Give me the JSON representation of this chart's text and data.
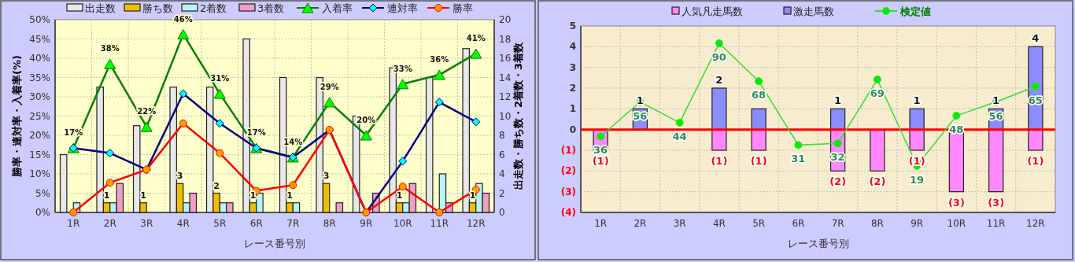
{
  "chart_data": [
    {
      "type": "bar",
      "xlabel": "レース番号別",
      "ylabel": "勝率・連対率・入着率(%)",
      "y2label": "出走数・勝ち数・2着数・3着数",
      "categories": [
        "1R",
        "2R",
        "3R",
        "4R",
        "5R",
        "6R",
        "7R",
        "8R",
        "9R",
        "10R",
        "11R",
        "12R"
      ],
      "ylim": [
        0,
        50
      ],
      "yticks": [
        {
          "value": 0,
          "label": "0%"
        },
        {
          "value": 5,
          "label": "5%"
        },
        {
          "value": 10,
          "label": "10%"
        },
        {
          "value": 15,
          "label": "15%"
        },
        {
          "value": 20,
          "label": "20%"
        },
        {
          "value": 25,
          "label": "25%"
        },
        {
          "value": 30,
          "label": "30%"
        },
        {
          "value": 35,
          "label": "35%"
        },
        {
          "value": 40,
          "label": "40%"
        },
        {
          "value": 45,
          "label": "45%"
        },
        {
          "value": 50,
          "label": "50%"
        }
      ],
      "y2lim": [
        0,
        20
      ],
      "y2ticks": [
        0,
        2,
        4,
        6,
        8,
        10,
        12,
        14,
        16,
        18,
        20
      ],
      "grid": true,
      "legend": "top",
      "series": [
        {
          "name": "出走数",
          "color": "#e8e8e8",
          "axis": "y2",
          "values": [
            6,
            13,
            9,
            13,
            13,
            18,
            14,
            14,
            10,
            15,
            14,
            17
          ]
        },
        {
          "name": "勝ち数",
          "color": "#f0c000",
          "axis": "y2",
          "values": [
            0,
            1,
            1,
            3,
            2,
            1,
            1,
            3,
            0,
            1,
            0,
            1
          ],
          "value_labels": [
            null,
            "1",
            "1",
            "3",
            "2",
            "1",
            "1",
            "3",
            null,
            "1",
            null,
            "1"
          ]
        },
        {
          "name": "2着数",
          "color": "#b8f4f4",
          "axis": "y2",
          "values": [
            1,
            1,
            0,
            1,
            1,
            2,
            1,
            0,
            0,
            1,
            4,
            3
          ]
        },
        {
          "name": "3着数",
          "color": "#f0a0c8",
          "axis": "y2",
          "values": [
            0,
            3,
            0,
            2,
            1,
            0,
            0,
            1,
            2,
            3,
            1,
            2
          ]
        },
        {
          "name": "入着率",
          "type": "line",
          "color": "#008000",
          "marker": "triangle",
          "values": [
            16.7,
            38.5,
            22.2,
            46.2,
            30.8,
            16.7,
            14.3,
            28.6,
            20,
            33.3,
            35.7,
            41.2
          ],
          "value_labels": [
            "17%",
            "38%",
            "22%",
            "46%",
            "31%",
            "17%",
            "14%",
            "29%",
            "20%",
            "33%",
            "36%",
            "41%"
          ]
        },
        {
          "name": "連対率",
          "type": "line",
          "color": "#000080",
          "marker": "diamond",
          "values": [
            16.7,
            15.4,
            11.1,
            30.8,
            23.1,
            16.7,
            14.3,
            21.4,
            0,
            13.3,
            28.6,
            23.5
          ]
        },
        {
          "name": "勝率",
          "type": "line",
          "color": "#ff0000",
          "marker": "circle",
          "values": [
            0,
            7.7,
            11.1,
            23.1,
            15.4,
            5.6,
            7.1,
            21.4,
            0,
            6.7,
            0,
            5.9
          ]
        }
      ]
    },
    {
      "type": "bar",
      "xlabel": "レース番号別",
      "stacked": true,
      "categories": [
        "1R",
        "2R",
        "3R",
        "4R",
        "5R",
        "6R",
        "7R",
        "8R",
        "9R",
        "10R",
        "11R",
        "12R"
      ],
      "ylim": [
        -4,
        5
      ],
      "yticks": [
        {
          "value": 5,
          "label": "5"
        },
        {
          "value": 4,
          "label": "4"
        },
        {
          "value": 3,
          "label": "3"
        },
        {
          "value": 2,
          "label": "2"
        },
        {
          "value": 1,
          "label": "1"
        },
        {
          "value": 0,
          "label": "0"
        },
        {
          "value": -1,
          "label": "(1)"
        },
        {
          "value": -2,
          "label": "(2)"
        },
        {
          "value": -3,
          "label": "(3)"
        },
        {
          "value": -4,
          "label": "(4)"
        }
      ],
      "y2lim": [
        -8,
        100
      ],
      "grid": true,
      "legend": "top",
      "ref_lines": [
        {
          "axis": "y",
          "value": 0,
          "color": "#ff0000"
        }
      ],
      "series": [
        {
          "name": "人気凡走馬数",
          "color": "#ff88ff",
          "values": [
            -1,
            0,
            0,
            -1,
            -1,
            0,
            -2,
            -2,
            -1,
            -3,
            -3,
            -1
          ],
          "value_labels": [
            "(1)",
            null,
            null,
            "(1)",
            "(1)",
            null,
            "(2)",
            "(2)",
            "(1)",
            "(3)",
            "(3)",
            "(1)"
          ]
        },
        {
          "name": "激走馬数",
          "color": "#8c8cff",
          "values": [
            0,
            1,
            0,
            2,
            1,
            0,
            1,
            0,
            1,
            0,
            1,
            4
          ],
          "value_labels": [
            null,
            "1",
            null,
            "2",
            null,
            null,
            "1",
            null,
            "1",
            null,
            "1",
            "4"
          ]
        },
        {
          "name": "検定値",
          "type": "line",
          "axis": "y2",
          "color": "#33dd33",
          "marker": "circle",
          "values": [
            36,
            56,
            44,
            90,
            68,
            31,
            32,
            69,
            19,
            48,
            56,
            65
          ],
          "value_labels": [
            "36",
            "56",
            "44",
            "90",
            "68",
            "31",
            "32",
            "69",
            "19",
            "48",
            "56",
            "65"
          ]
        }
      ]
    }
  ]
}
